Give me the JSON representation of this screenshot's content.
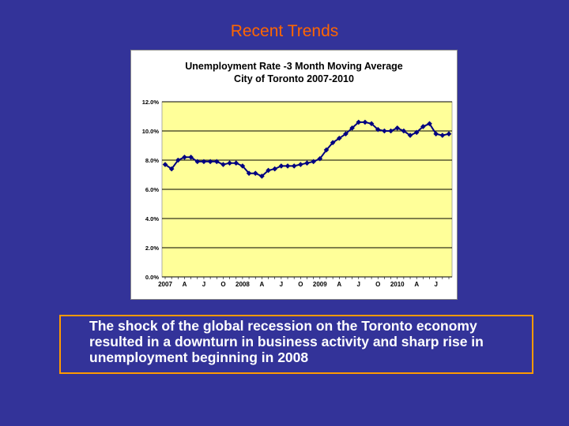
{
  "slide": {
    "title": "Recent Trends",
    "body_text": "The shock of the global recession on the Toronto economy resulted in a downturn in business activity and sharp rise in unemployment beginning in 2008"
  },
  "colors": {
    "background": "#333399",
    "title": "#ff6600",
    "plot_area": "#ffff99",
    "series": "#000080",
    "text_border": "#ff9900"
  },
  "chart_data": {
    "type": "line",
    "title": "Unemployment Rate -3 Month Moving Average",
    "subtitle": "City of Toronto 2007-2010",
    "xlabel": "",
    "ylabel": "",
    "ylim": [
      0,
      12
    ],
    "yticks": [
      0,
      2,
      4,
      6,
      8,
      10,
      12
    ],
    "ytick_labels": [
      "0.0%",
      "2.0%",
      "4.0%",
      "6.0%",
      "8.0%",
      "10.0%",
      "12.0%"
    ],
    "grid": "horizontal",
    "x_tick_labels": [
      {
        "index": 0,
        "label": "2007"
      },
      {
        "index": 3,
        "label": "A"
      },
      {
        "index": 6,
        "label": "J"
      },
      {
        "index": 9,
        "label": "O"
      },
      {
        "index": 12,
        "label": "2008"
      },
      {
        "index": 15,
        "label": "A"
      },
      {
        "index": 18,
        "label": "J"
      },
      {
        "index": 21,
        "label": "O"
      },
      {
        "index": 24,
        "label": "2009"
      },
      {
        "index": 27,
        "label": "A"
      },
      {
        "index": 30,
        "label": "J"
      },
      {
        "index": 33,
        "label": "O"
      },
      {
        "index": 36,
        "label": "2010"
      },
      {
        "index": 39,
        "label": "A"
      },
      {
        "index": 42,
        "label": "J"
      }
    ],
    "series": [
      {
        "name": "Unemployment Rate",
        "values": [
          7.7,
          7.4,
          8.0,
          8.2,
          8.2,
          7.9,
          7.9,
          7.9,
          7.9,
          7.7,
          7.8,
          7.8,
          7.6,
          7.1,
          7.1,
          6.9,
          7.3,
          7.4,
          7.6,
          7.6,
          7.6,
          7.7,
          7.8,
          7.9,
          8.1,
          8.7,
          9.2,
          9.5,
          9.8,
          10.2,
          10.6,
          10.6,
          10.5,
          10.1,
          10.0,
          10.0,
          10.2,
          10.0,
          9.7,
          9.9,
          10.3,
          10.5,
          9.8,
          9.7,
          9.8
        ]
      }
    ]
  }
}
